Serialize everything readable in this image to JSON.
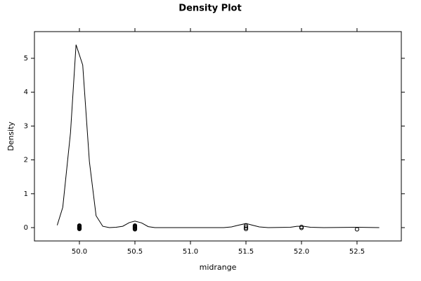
{
  "chart_data": {
    "type": "density",
    "title": "Density Plot",
    "x_label": "midrange",
    "y_label": "Density",
    "xlim": [
      49.595,
      52.899
    ],
    "ylim": [
      -0.394,
      5.788
    ],
    "xticks": [
      {
        "value": 50,
        "label": "50.0"
      },
      50.5,
      {
        "value": 51,
        "label": "51.0"
      },
      51.5,
      {
        "value": 52,
        "label": "52.0"
      },
      52.5
    ],
    "yticks": [
      0,
      1,
      2,
      3,
      4,
      5
    ],
    "series": [
      {
        "kind": "line",
        "color": "#000000",
        "x": [
          49.8,
          49.85,
          49.92,
          49.97,
          50.03,
          50.09,
          50.15,
          50.21,
          50.27,
          50.33,
          50.39,
          50.45,
          50.5,
          50.56,
          50.62,
          50.68,
          51.0,
          51.3,
          51.37,
          51.43,
          51.5,
          51.56,
          51.62,
          51.7,
          51.9,
          51.96,
          52.02,
          52.08,
          52.2,
          52.5,
          52.7
        ],
        "y": [
          0.07,
          0.6,
          2.8,
          5.4,
          4.8,
          1.95,
          0.35,
          0.04,
          0,
          0.01,
          0.04,
          0.15,
          0.19,
          0.14,
          0.03,
          0,
          0,
          0,
          0.02,
          0.07,
          0.12,
          0.07,
          0.02,
          0,
          0.01,
          0.04,
          0.04,
          0.01,
          0,
          0.01,
          0
        ]
      },
      {
        "kind": "points",
        "color": "#000000",
        "x": [
          50,
          50,
          50,
          50,
          50,
          50,
          50,
          50,
          50,
          50.5,
          50.5,
          50.5,
          50.5,
          50.5,
          50.5,
          50.5,
          51.5,
          51.5,
          51.5,
          52,
          52,
          52.5
        ],
        "y": [
          0.06,
          0.04,
          0.02,
          0,
          -0.02,
          -0.04,
          0.05,
          0.01,
          -0.03,
          0.06,
          0.03,
          0.01,
          -0.01,
          -0.03,
          -0.05,
          0.04,
          0.05,
          0,
          -0.04,
          0.02,
          -0.01,
          -0.05
        ]
      }
    ]
  }
}
